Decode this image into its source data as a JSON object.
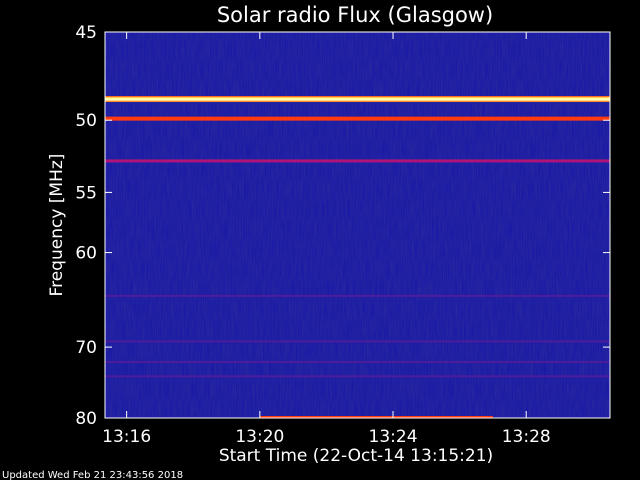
{
  "chart_data": {
    "type": "heatmap",
    "title": "Solar radio Flux (Glasgow)",
    "ylabel": "Frequency [MHz]",
    "xlabel": "Start Time (22-Oct-14 13:15:21)",
    "y_ticks": [
      "45",
      "50",
      "55",
      "60",
      "70",
      "80"
    ],
    "x_ticks": [
      "13:16",
      "13:20",
      "13:24",
      "13:28"
    ],
    "ylim": [
      45,
      80
    ],
    "y_scale": "reciprocal",
    "xlim": [
      "13:15:21",
      "13:30:31"
    ],
    "colormap": [
      "#00008c",
      "#1a1acc",
      "#ff0000",
      "#ff8c00",
      "#ffff66"
    ],
    "emission_bands": [
      {
        "freq_mhz": 48.7,
        "level": "very-high"
      },
      {
        "freq_mhz": 49.9,
        "level": "high"
      },
      {
        "freq_mhz": 52.7,
        "level": "medium"
      },
      {
        "freq_mhz": 64.2,
        "level": "low"
      },
      {
        "freq_mhz": 69.3,
        "level": "low"
      },
      {
        "freq_mhz": 71.9,
        "level": "low"
      },
      {
        "freq_mhz": 73.8,
        "level": "low"
      },
      {
        "freq_mhz": 80.0,
        "level": "high",
        "time_range": [
          "13:20:00",
          "13:27:00"
        ]
      }
    ]
  },
  "footer": {
    "updated": "Updated Wed Feb 21 23:43:56 2018"
  }
}
